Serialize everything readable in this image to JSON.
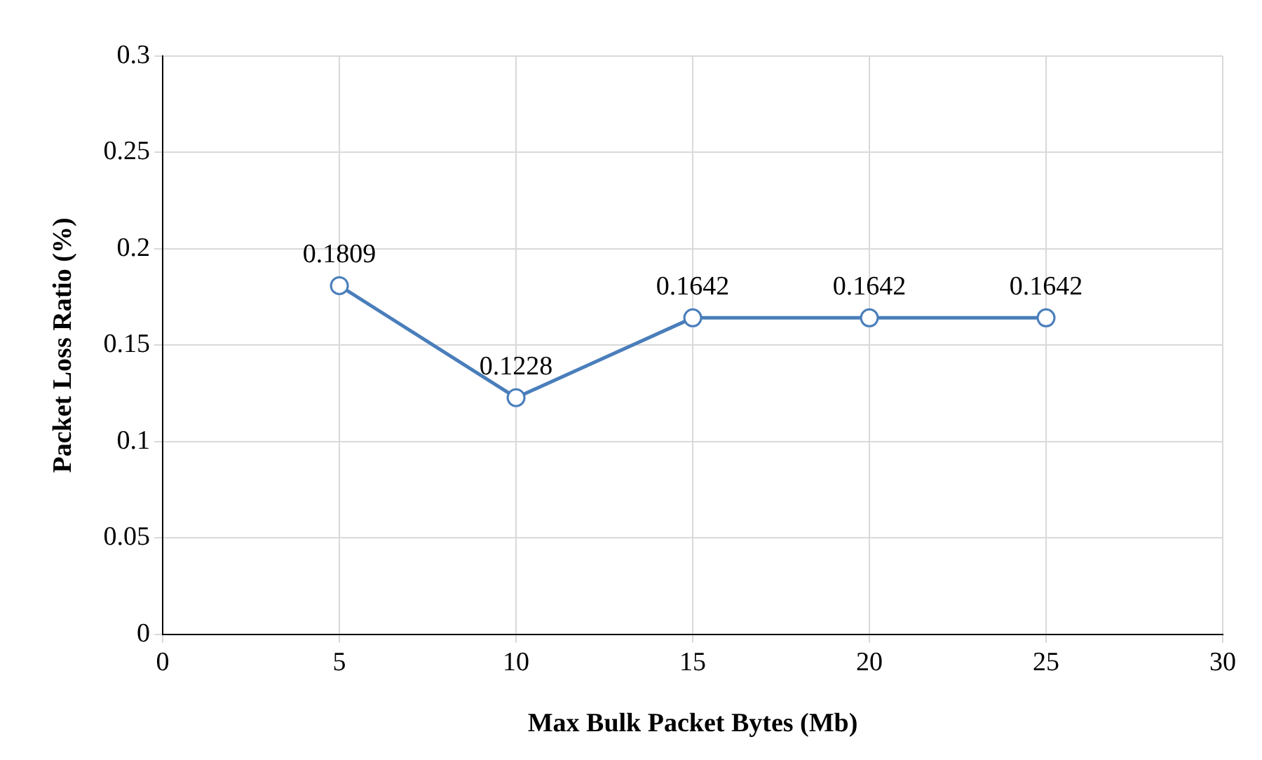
{
  "chart_data": {
    "type": "line",
    "xlabel": "Max Bulk Packet Bytes (Mb)",
    "ylabel": "Packet Loss Ratio (%)",
    "x": [
      5,
      10,
      15,
      20,
      25
    ],
    "series": [
      {
        "color": "#4a7ebb",
        "values": [
          0.1809,
          0.1228,
          0.1642,
          0.1642,
          0.1642
        ]
      }
    ],
    "xlim": [
      0,
      30
    ],
    "xticks": [
      0,
      5,
      10,
      15,
      20,
      25,
      30
    ],
    "ylim": [
      0,
      0.3
    ],
    "yticks": [
      0,
      0.05,
      0.1,
      0.15,
      0.2,
      0.25,
      0.3
    ],
    "grid": true,
    "legend": false,
    "marker": "circle",
    "line_style": "solid",
    "data_labels": true
  }
}
